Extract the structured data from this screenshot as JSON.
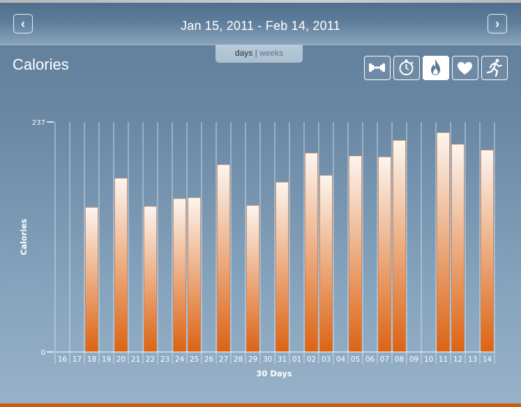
{
  "header": {
    "prev_symbol": "‹",
    "next_symbol": "›",
    "date_range": "Jan 15, 2011 - Feb 14, 2011"
  },
  "toggle": {
    "days": "days",
    "separator": "|",
    "weeks": "weeks",
    "selected": "days"
  },
  "page": {
    "title": "Calories"
  },
  "metric_buttons": [
    {
      "icon": "dumbbell-icon",
      "active": false
    },
    {
      "icon": "stopwatch-icon",
      "active": false
    },
    {
      "icon": "flame-icon",
      "active": true
    },
    {
      "icon": "heart-icon",
      "active": false
    },
    {
      "icon": "runner-icon",
      "active": false
    }
  ],
  "colors": {
    "bar_top": "#fcf5ef",
    "bar_bottom": "#dc6313",
    "bar_border": "#d9773a",
    "bottom_stripe": "#cc5b10"
  },
  "chart_data": {
    "type": "bar",
    "title": "",
    "xlabel": "30 Days",
    "ylabel": "Calories",
    "ylim": [
      0,
      237
    ],
    "y_ticks": [
      "0",
      "237"
    ],
    "grid": true,
    "categories": [
      "16",
      "17",
      "18",
      "19",
      "20",
      "21",
      "22",
      "23",
      "24",
      "25",
      "26",
      "27",
      "28",
      "29",
      "30",
      "31",
      "01",
      "02",
      "03",
      "04",
      "05",
      "06",
      "07",
      "08",
      "09",
      "10",
      "11",
      "12",
      "13",
      "14"
    ],
    "values": [
      0,
      0,
      149,
      0,
      179,
      0,
      150,
      0,
      158,
      159,
      0,
      193,
      0,
      151,
      0,
      175,
      0,
      205,
      182,
      0,
      202,
      0,
      201,
      218,
      0,
      0,
      226,
      214,
      0,
      208
    ]
  }
}
